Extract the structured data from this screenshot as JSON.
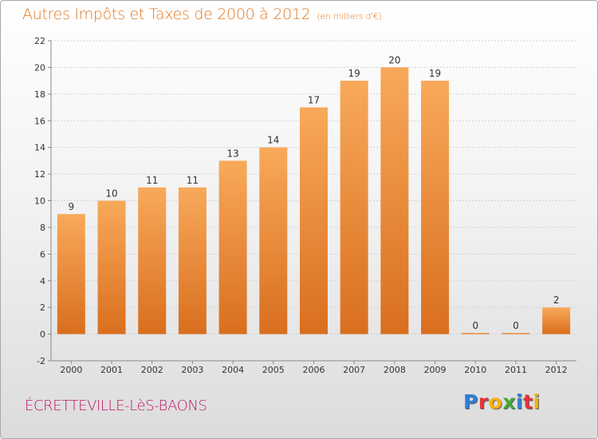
{
  "header": {
    "title": "Autres Impôts et Taxes de 2000 à 2012",
    "unit": "(en milliers d'€)"
  },
  "footer": {
    "commune": "ÉCRETTEVILLE-LèS-BAONS",
    "brand": "Proxiti",
    "brand_letters": [
      {
        "ch": "P",
        "color": "#2f7fd4"
      },
      {
        "ch": "r",
        "color": "#e2343a"
      },
      {
        "ch": "o",
        "color": "#f3b10f"
      },
      {
        "ch": "x",
        "color": "#43a836"
      },
      {
        "ch": "i",
        "color": "#2f7fd4"
      },
      {
        "ch": "t",
        "color": "#e2343a"
      },
      {
        "ch": "i",
        "color": "#f3b10f"
      }
    ]
  },
  "colors": {
    "bar_top": "#f8a95a",
    "bar_bottom": "#d96f1e",
    "title": "#e07a24",
    "commune": "#c0166a"
  },
  "chart_data": {
    "type": "bar",
    "title": "Autres Impôts et Taxes de 2000 à 2012",
    "subtitle": "(en milliers d'€)",
    "categories": [
      "2000",
      "2001",
      "2002",
      "2003",
      "2004",
      "2005",
      "2006",
      "2007",
      "2008",
      "2009",
      "2010",
      "2011",
      "2012"
    ],
    "values": [
      9,
      10,
      11,
      11,
      13,
      14,
      17,
      19,
      20,
      19,
      0,
      0,
      2
    ],
    "ylim": [
      -2,
      22
    ],
    "yticks": [
      -2,
      0,
      2,
      4,
      6,
      8,
      10,
      12,
      14,
      16,
      18,
      20,
      22
    ],
    "grid": true,
    "legend": "none"
  }
}
